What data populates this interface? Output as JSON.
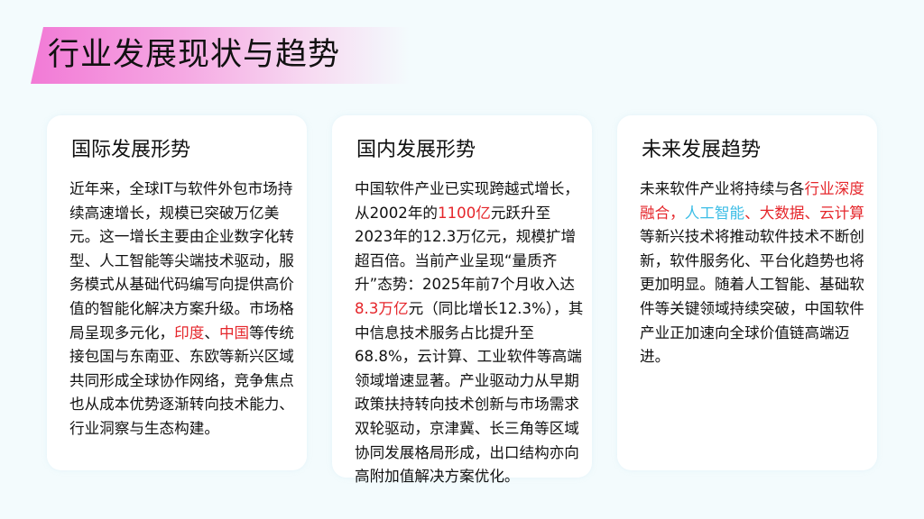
{
  "page": {
    "title": "行业发展现状与趋势"
  },
  "colors": {
    "accent_pink": "#f27ad6",
    "highlight_red": "#e5262b",
    "highlight_cyan": "#3cbde6",
    "background": "#f3fbfd"
  },
  "cards": [
    {
      "heading": "国际发展形势",
      "segments": [
        {
          "text": "近年来，全球IT与软件外包市场持续高速增长，规模已突破万亿美元。这一增长主要由企业数字化转型、人工智能等尖端技术驱动，服务模式从基础代码编写向提供高价值的智能化解决方案升级。市场格局呈现多元化，",
          "style": "normal"
        },
        {
          "text": "印度",
          "style": "red"
        },
        {
          "text": "、",
          "style": "normal"
        },
        {
          "text": "中国",
          "style": "red"
        },
        {
          "text": "等传统接包国与东南亚、东欧等新兴区域共同形成全球协作网络，竞争焦点也从成本优势逐渐转向技术能力、行业洞察与生态构建。",
          "style": "normal"
        }
      ]
    },
    {
      "heading": "国内发展形势",
      "segments": [
        {
          "text": "中国软件产业已实现跨越式增长，从2002年的",
          "style": "normal"
        },
        {
          "text": "1100亿",
          "style": "red"
        },
        {
          "text": "元跃升至2023年的12.3万亿元，规模扩增超百倍。当前产业呈现“量质齐升”态势：2025年前7个月收入达",
          "style": "normal"
        },
        {
          "text": "8.3万亿",
          "style": "red"
        },
        {
          "text": "元（同比增长12.3%），其中信息技术服务占比提升至68.8%，云计算、工业软件等高端领域增速显著。产业驱动力从早期政策扶持转向技术创新与市场需求双轮驱动，京津冀、长三角等区域协同发展格局形成，出口结构亦向高附加值解决方案优化。",
          "style": "normal"
        }
      ]
    },
    {
      "heading": "未来发展趋势",
      "segments": [
        {
          "text": "未来软件产业将持续与各",
          "style": "normal"
        },
        {
          "text": "行业深度融合，",
          "style": "red"
        },
        {
          "text": "人工智能",
          "style": "cyan"
        },
        {
          "text": "、大数据、云计算",
          "style": "red"
        },
        {
          "text": "等新兴技术将推动软件技术不断创新，软件服务化、平台化趋势也将更加明显。随着人工智能、基础软件等关键领域持续突破，中国软件产业正加速向全球价值链高端迈进。",
          "style": "normal"
        }
      ]
    }
  ]
}
